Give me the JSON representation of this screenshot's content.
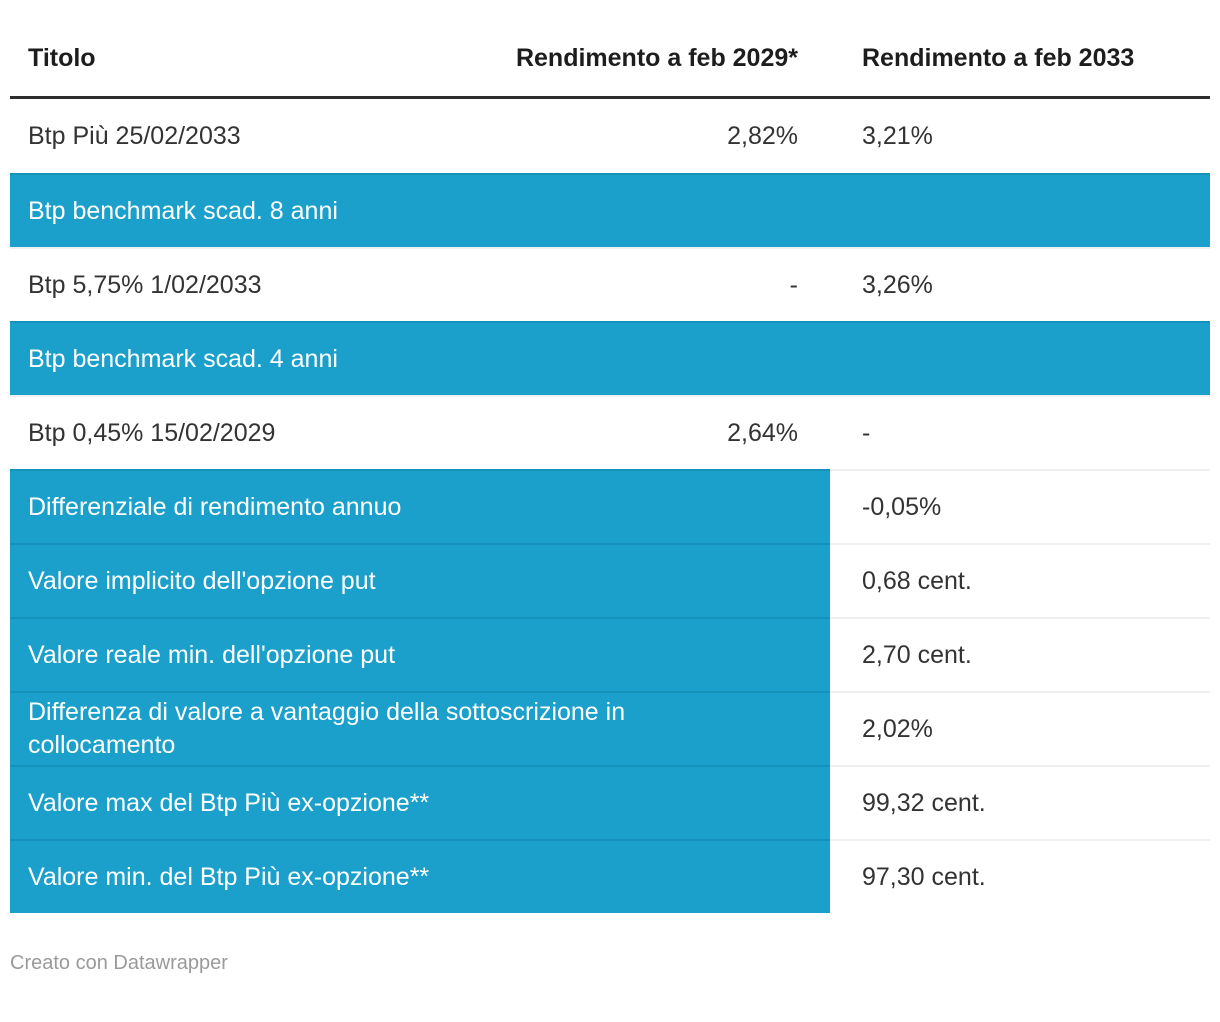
{
  "colors": {
    "accent": "#1aa0cb",
    "accent_divider": "#1592bb",
    "row_divider": "#f0f0f0",
    "header_rule": "#2e2e2e",
    "header_text": "#1d1d1d",
    "text": "#333333",
    "text_on_accent": "#ffffff",
    "footer_text": "#9a9a9a"
  },
  "table": {
    "columns": [
      {
        "id": "titolo",
        "label": "Titolo"
      },
      {
        "id": "2029",
        "label": "Rendimento a feb 2029*"
      },
      {
        "id": "2033",
        "label": "Rendimento a feb 2033"
      }
    ],
    "rows": [
      {
        "type": "data",
        "titolo": "Btp Più 25/02/2033",
        "rend2029": "2,82%",
        "rend2033": "3,21%"
      },
      {
        "type": "section",
        "label": "Btp benchmark scad. 8 anni"
      },
      {
        "type": "data",
        "titolo": "Btp 5,75% 1/02/2033",
        "rend2029": "-",
        "rend2033": "3,26%"
      },
      {
        "type": "section",
        "label": "Btp benchmark scad. 4 anni"
      },
      {
        "type": "data",
        "titolo": "Btp 0,45% 15/02/2029",
        "rend2029": "2,64%",
        "rend2033": "-"
      },
      {
        "type": "metric",
        "label": "Differenziale di rendimento annuo",
        "value": "-0,05%"
      },
      {
        "type": "metric",
        "label": "Valore implicito dell'opzione put",
        "value": "0,68 cent."
      },
      {
        "type": "metric",
        "label": "Valore reale min. dell'opzione put",
        "value": "2,70 cent."
      },
      {
        "type": "metric",
        "label": "Differenza di valore a vantaggio della sottoscrizione in collocamento",
        "value": "2,02%"
      },
      {
        "type": "metric",
        "label": "Valore max del Btp Più ex-opzione**",
        "value": "99,32 cent."
      },
      {
        "type": "metric",
        "label": "Valore min. del Btp Più ex-opzione**",
        "value": "97,30 cent."
      }
    ]
  },
  "footer": {
    "credit": "Creato con Datawrapper"
  },
  "chart_data": {
    "type": "table",
    "title": "",
    "columns": [
      "Titolo",
      "Rendimento a feb 2029*",
      "Rendimento a feb 2033"
    ],
    "rows": [
      [
        "Btp Più 25/02/2033",
        "2,82%",
        "3,21%"
      ],
      [
        "Btp benchmark scad. 8 anni",
        "",
        ""
      ],
      [
        "Btp 5,75% 1/02/2033",
        "-",
        "3,26%"
      ],
      [
        "Btp benchmark scad. 4 anni",
        "",
        ""
      ],
      [
        "Btp 0,45% 15/02/2029",
        "2,64%",
        "-"
      ],
      [
        "Differenziale di rendimento annuo",
        "",
        "-0,05%"
      ],
      [
        "Valore implicito dell'opzione put",
        "",
        "0,68 cent."
      ],
      [
        "Valore reale min. dell'opzione put",
        "",
        "2,70 cent."
      ],
      [
        "Differenza di valore a vantaggio della sottoscrizione in collocamento",
        "",
        "2,02%"
      ],
      [
        "Valore max del Btp Più ex-opzione**",
        "",
        "99,32 cent."
      ],
      [
        "Valore min. del Btp Più ex-opzione**",
        "",
        "97,30 cent."
      ]
    ],
    "layout": {
      "highlight_rows_full": [
        1,
        3
      ],
      "highlight_rows_label_only": [
        5,
        6,
        7,
        8,
        9,
        10
      ],
      "column_align": [
        "left",
        "right",
        "left"
      ]
    }
  }
}
